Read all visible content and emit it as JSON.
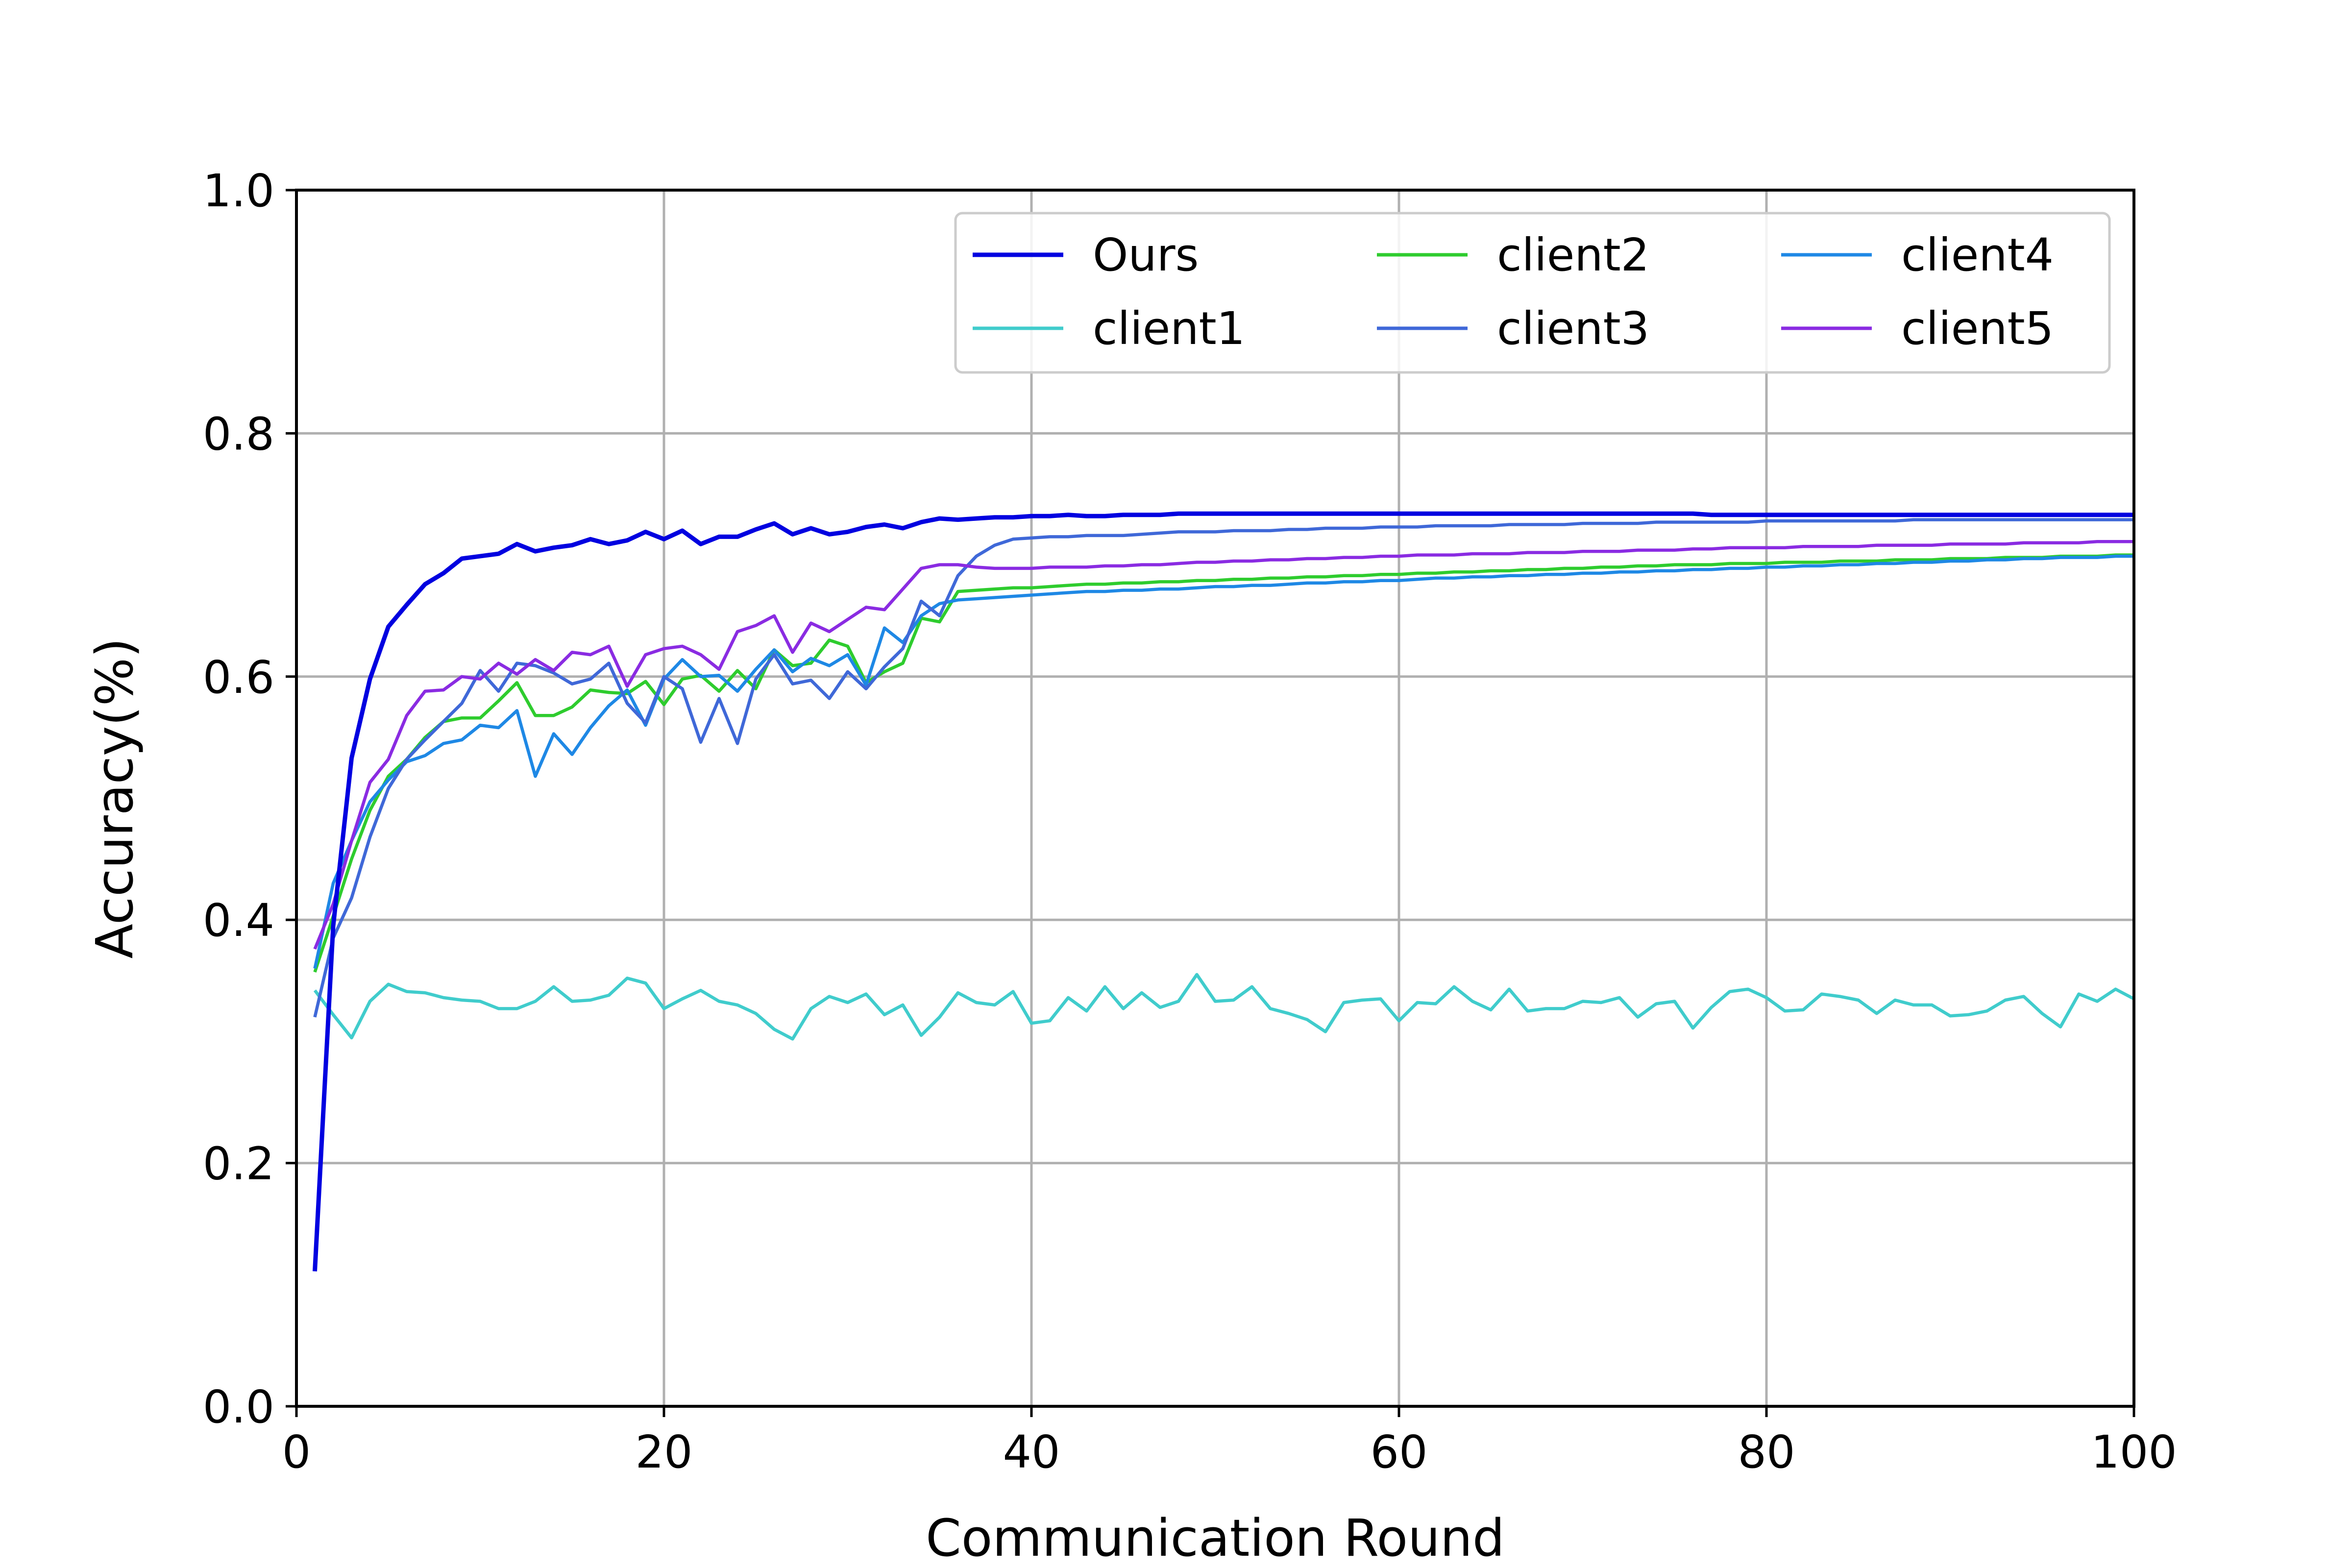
{
  "chart_data": {
    "type": "line",
    "title": "",
    "xlabel": "Communication Round",
    "ylabel": "Accuracy(%)",
    "xlim": [
      0,
      100
    ],
    "ylim": [
      0.0,
      1.0
    ],
    "xticks": [
      0,
      20,
      40,
      60,
      80,
      100
    ],
    "yticks": [
      0.0,
      0.2,
      0.4,
      0.6,
      0.8,
      1.0
    ],
    "xtick_labels": [
      "0",
      "20",
      "40",
      "60",
      "80",
      "100"
    ],
    "ytick_labels": [
      "0.0",
      "0.2",
      "0.4",
      "0.6",
      "0.8",
      "1.0"
    ],
    "grid": true,
    "legend_position": "top-right",
    "legend_columns": 3,
    "x": [
      1,
      2,
      3,
      4,
      5,
      6,
      7,
      8,
      9,
      10,
      11,
      12,
      13,
      14,
      15,
      16,
      17,
      18,
      19,
      20,
      21,
      22,
      23,
      24,
      25,
      26,
      27,
      28,
      29,
      30,
      31,
      32,
      33,
      34,
      35,
      36,
      37,
      38,
      39,
      40,
      41,
      42,
      43,
      44,
      45,
      46,
      47,
      48,
      49,
      50,
      51,
      52,
      53,
      54,
      55,
      56,
      57,
      58,
      59,
      60,
      61,
      62,
      63,
      64,
      65,
      66,
      67,
      68,
      69,
      70,
      71,
      72,
      73,
      74,
      75,
      76,
      77,
      78,
      79,
      80,
      81,
      82,
      83,
      84,
      85,
      86,
      87,
      88,
      89,
      90,
      91,
      92,
      93,
      94,
      95,
      96,
      97,
      98,
      99,
      100
    ],
    "series": [
      {
        "name": "Ours",
        "color": "#0000e0",
        "values": [
          0.111,
          0.395,
          0.533,
          0.598,
          0.641,
          0.659,
          0.676,
          0.685,
          0.697,
          0.699,
          0.701,
          0.709,
          0.703,
          0.706,
          0.708,
          0.713,
          0.709,
          0.712,
          0.719,
          0.713,
          0.72,
          0.709,
          0.715,
          0.715,
          0.721,
          0.726,
          0.717,
          0.722,
          0.717,
          0.719,
          0.723,
          0.725,
          0.722,
          0.727,
          0.73,
          0.729,
          0.73,
          0.731,
          0.731,
          0.732,
          0.732,
          0.733,
          0.732,
          0.732,
          0.733,
          0.733,
          0.733,
          0.734,
          0.734,
          0.734,
          0.734,
          0.734,
          0.734,
          0.734,
          0.734,
          0.734,
          0.734,
          0.734,
          0.734,
          0.734,
          0.734,
          0.734,
          0.734,
          0.734,
          0.734,
          0.734,
          0.734,
          0.734,
          0.734,
          0.734,
          0.734,
          0.734,
          0.734,
          0.734,
          0.734,
          0.734,
          0.733,
          0.733,
          0.733,
          0.733,
          0.733,
          0.733,
          0.733,
          0.733,
          0.733,
          0.733,
          0.733,
          0.733,
          0.733,
          0.733,
          0.733,
          0.733,
          0.733,
          0.733,
          0.733,
          0.733,
          0.733,
          0.733,
          0.733,
          0.733
        ]
      },
      {
        "name": "client1",
        "color": "#40cccc",
        "values": [
          0.342,
          0.322,
          0.303,
          0.333,
          0.347,
          0.341,
          0.34,
          0.336,
          0.334,
          0.333,
          0.327,
          0.327,
          0.333,
          0.345,
          0.333,
          0.334,
          0.338,
          0.352,
          0.348,
          0.327,
          0.335,
          0.342,
          0.333,
          0.33,
          0.323,
          0.31,
          0.302,
          0.327,
          0.337,
          0.332,
          0.339,
          0.322,
          0.33,
          0.305,
          0.32,
          0.34,
          0.332,
          0.33,
          0.341,
          0.315,
          0.317,
          0.336,
          0.325,
          0.345,
          0.327,
          0.34,
          0.328,
          0.333,
          0.355,
          0.333,
          0.334,
          0.345,
          0.327,
          0.323,
          0.318,
          0.308,
          0.332,
          0.334,
          0.335,
          0.317,
          0.332,
          0.331,
          0.345,
          0.333,
          0.326,
          0.343,
          0.325,
          0.327,
          0.327,
          0.333,
          0.332,
          0.336,
          0.32,
          0.331,
          0.333,
          0.311,
          0.328,
          0.341,
          0.343,
          0.336,
          0.325,
          0.326,
          0.339,
          0.337,
          0.334,
          0.323,
          0.334,
          0.33,
          0.33,
          0.321,
          0.322,
          0.325,
          0.334,
          0.337,
          0.323,
          0.312,
          0.339,
          0.333,
          0.343,
          0.335
        ]
      },
      {
        "name": "client2",
        "color": "#2ecc2e",
        "values": [
          0.357,
          0.403,
          0.45,
          0.49,
          0.518,
          0.532,
          0.55,
          0.563,
          0.566,
          0.566,
          0.58,
          0.595,
          0.568,
          0.568,
          0.575,
          0.589,
          0.587,
          0.586,
          0.596,
          0.577,
          0.598,
          0.601,
          0.588,
          0.605,
          0.59,
          0.622,
          0.609,
          0.611,
          0.63,
          0.625,
          0.595,
          0.604,
          0.611,
          0.648,
          0.645,
          0.67,
          0.671,
          0.672,
          0.673,
          0.673,
          0.674,
          0.675,
          0.676,
          0.676,
          0.677,
          0.677,
          0.678,
          0.678,
          0.679,
          0.679,
          0.68,
          0.68,
          0.681,
          0.681,
          0.682,
          0.682,
          0.683,
          0.683,
          0.684,
          0.684,
          0.685,
          0.685,
          0.686,
          0.686,
          0.687,
          0.687,
          0.688,
          0.688,
          0.689,
          0.689,
          0.69,
          0.69,
          0.691,
          0.691,
          0.692,
          0.692,
          0.692,
          0.693,
          0.693,
          0.693,
          0.694,
          0.694,
          0.694,
          0.695,
          0.695,
          0.695,
          0.696,
          0.696,
          0.696,
          0.697,
          0.697,
          0.697,
          0.698,
          0.698,
          0.698,
          0.699,
          0.699,
          0.699,
          0.7,
          0.7
        ]
      },
      {
        "name": "client3",
        "color": "#3f68d8",
        "values": [
          0.32,
          0.385,
          0.418,
          0.468,
          0.508,
          0.532,
          0.548,
          0.563,
          0.578,
          0.605,
          0.588,
          0.611,
          0.609,
          0.603,
          0.594,
          0.598,
          0.611,
          0.578,
          0.562,
          0.6,
          0.59,
          0.546,
          0.582,
          0.545,
          0.598,
          0.618,
          0.594,
          0.597,
          0.582,
          0.604,
          0.59,
          0.608,
          0.623,
          0.662,
          0.65,
          0.683,
          0.699,
          0.708,
          0.713,
          0.714,
          0.715,
          0.715,
          0.716,
          0.716,
          0.716,
          0.717,
          0.718,
          0.719,
          0.719,
          0.719,
          0.72,
          0.72,
          0.72,
          0.721,
          0.721,
          0.722,
          0.722,
          0.722,
          0.723,
          0.723,
          0.723,
          0.724,
          0.724,
          0.724,
          0.724,
          0.725,
          0.725,
          0.725,
          0.725,
          0.726,
          0.726,
          0.726,
          0.726,
          0.727,
          0.727,
          0.727,
          0.727,
          0.727,
          0.727,
          0.728,
          0.728,
          0.728,
          0.728,
          0.728,
          0.728,
          0.728,
          0.728,
          0.729,
          0.729,
          0.729,
          0.729,
          0.729,
          0.729,
          0.729,
          0.729,
          0.729,
          0.729,
          0.729,
          0.729,
          0.729
        ]
      },
      {
        "name": "client4",
        "color": "#1e88e5",
        "values": [
          0.36,
          0.43,
          0.465,
          0.497,
          0.515,
          0.53,
          0.535,
          0.545,
          0.548,
          0.56,
          0.558,
          0.572,
          0.518,
          0.553,
          0.536,
          0.558,
          0.576,
          0.589,
          0.56,
          0.598,
          0.614,
          0.6,
          0.601,
          0.588,
          0.606,
          0.622,
          0.604,
          0.615,
          0.609,
          0.618,
          0.593,
          0.64,
          0.628,
          0.65,
          0.66,
          0.663,
          0.664,
          0.665,
          0.666,
          0.667,
          0.668,
          0.669,
          0.67,
          0.67,
          0.671,
          0.671,
          0.672,
          0.672,
          0.673,
          0.674,
          0.674,
          0.675,
          0.675,
          0.676,
          0.677,
          0.677,
          0.678,
          0.678,
          0.679,
          0.679,
          0.68,
          0.681,
          0.681,
          0.682,
          0.682,
          0.683,
          0.683,
          0.684,
          0.684,
          0.685,
          0.685,
          0.686,
          0.686,
          0.687,
          0.687,
          0.688,
          0.688,
          0.689,
          0.689,
          0.69,
          0.69,
          0.691,
          0.691,
          0.692,
          0.692,
          0.693,
          0.693,
          0.694,
          0.694,
          0.695,
          0.695,
          0.696,
          0.696,
          0.697,
          0.697,
          0.698,
          0.698,
          0.698,
          0.699,
          0.699
        ]
      },
      {
        "name": "client5",
        "color": "#8a2be2",
        "values": [
          0.376,
          0.413,
          0.465,
          0.513,
          0.532,
          0.568,
          0.588,
          0.589,
          0.6,
          0.598,
          0.611,
          0.602,
          0.614,
          0.605,
          0.62,
          0.618,
          0.625,
          0.592,
          0.618,
          0.623,
          0.625,
          0.618,
          0.606,
          0.637,
          0.642,
          0.65,
          0.62,
          0.644,
          0.637,
          0.647,
          0.657,
          0.655,
          0.672,
          0.689,
          0.692,
          0.692,
          0.69,
          0.689,
          0.689,
          0.689,
          0.69,
          0.69,
          0.69,
          0.691,
          0.691,
          0.692,
          0.692,
          0.693,
          0.694,
          0.694,
          0.695,
          0.695,
          0.696,
          0.696,
          0.697,
          0.697,
          0.698,
          0.698,
          0.699,
          0.699,
          0.7,
          0.7,
          0.7,
          0.701,
          0.701,
          0.701,
          0.702,
          0.702,
          0.702,
          0.703,
          0.703,
          0.703,
          0.704,
          0.704,
          0.704,
          0.705,
          0.705,
          0.706,
          0.706,
          0.706,
          0.706,
          0.707,
          0.707,
          0.707,
          0.707,
          0.708,
          0.708,
          0.708,
          0.708,
          0.709,
          0.709,
          0.709,
          0.709,
          0.71,
          0.71,
          0.71,
          0.71,
          0.711,
          0.711,
          0.711
        ]
      }
    ]
  }
}
